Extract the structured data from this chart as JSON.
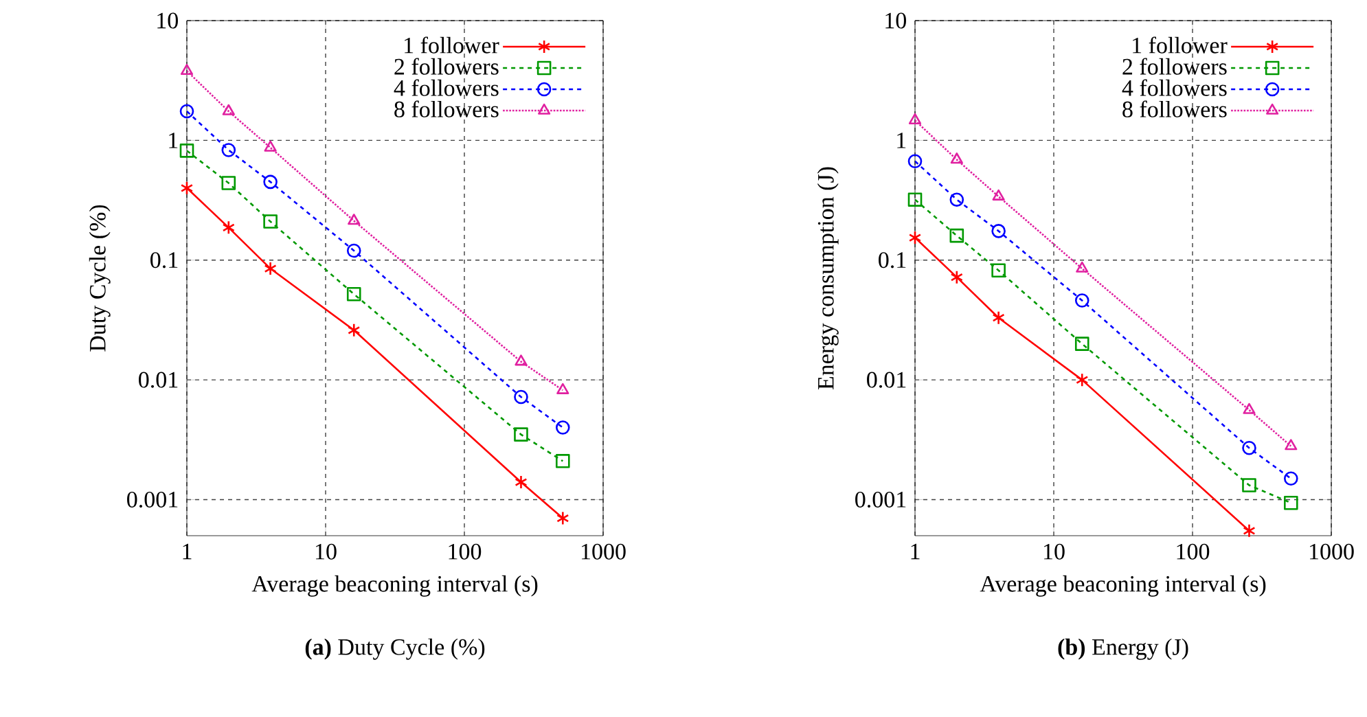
{
  "chart_data": [
    {
      "type": "line",
      "title": "**(a)** Duty Cycle (%)",
      "xlabel": "Average beaconing interval (s)",
      "ylabel": "Duty Cycle (%)",
      "log": "xy",
      "grid": true,
      "legend": "top right",
      "x": [
        1,
        2,
        4,
        16,
        256,
        512
      ],
      "xlim": [
        1,
        1000
      ],
      "ylim": [
        0.0005,
        10
      ],
      "xticks": [
        1,
        10,
        100,
        1000
      ],
      "yticks": [
        0.001,
        0.01,
        0.1,
        1,
        10
      ],
      "series": [
        {
          "name": "1 follower",
          "color": "#ff0000",
          "marker": "cross",
          "line_style": "solid",
          "values": [
            0.4,
            0.187,
            0.085,
            0.026,
            0.0014,
            0.0007
          ]
        },
        {
          "name": "2 followers",
          "color": "#009900",
          "marker": "square",
          "line_style": "dashed",
          "values": [
            0.82,
            0.44,
            0.21,
            0.052,
            0.0035,
            0.0021
          ]
        },
        {
          "name": "4 followers",
          "color": "#0000ff",
          "marker": "circle",
          "line_style": "dashed",
          "values": [
            1.75,
            0.83,
            0.45,
            0.12,
            0.0072,
            0.004
          ]
        },
        {
          "name": "8 followers",
          "color": "#e020a0",
          "marker": "triangle",
          "line_style": "dotted",
          "values": [
            3.8,
            1.75,
            0.87,
            0.213,
            0.0142,
            0.0082
          ]
        }
      ]
    },
    {
      "type": "line",
      "title": "**(b)** Energy (J)",
      "xlabel": "Average beaconing interval (s)",
      "ylabel": "Energy consumption (J)",
      "log": "xy",
      "grid": true,
      "legend": "top right",
      "x": [
        1,
        2,
        4,
        16,
        256,
        512
      ],
      "xlim": [
        1,
        1000
      ],
      "ylim": [
        0.0005,
        10
      ],
      "xticks": [
        1,
        10,
        100,
        1000
      ],
      "yticks": [
        0.001,
        0.01,
        0.1,
        1,
        10
      ],
      "series": [
        {
          "name": "1 follower",
          "color": "#ff0000",
          "marker": "cross",
          "line_style": "solid",
          "values": [
            0.154,
            0.072,
            0.033,
            0.01,
            0.00055,
            null
          ]
        },
        {
          "name": "2 followers",
          "color": "#009900",
          "marker": "square",
          "line_style": "dashed",
          "values": [
            0.32,
            0.16,
            0.082,
            0.02,
            0.00132,
            0.00094
          ]
        },
        {
          "name": "4 followers",
          "color": "#0000ff",
          "marker": "circle",
          "line_style": "dashed",
          "values": [
            0.67,
            0.32,
            0.175,
            0.046,
            0.0027,
            0.0015
          ]
        },
        {
          "name": "8 followers",
          "color": "#e020a0",
          "marker": "triangle",
          "line_style": "dotted",
          "values": [
            1.47,
            0.69,
            0.34,
            0.085,
            0.0056,
            0.0028
          ]
        }
      ]
    }
  ]
}
